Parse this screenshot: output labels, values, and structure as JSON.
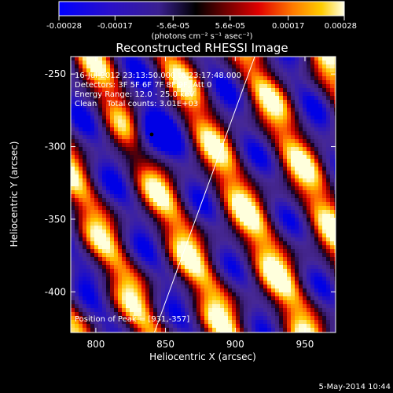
{
  "colorbar": {
    "tick_labels": [
      "-0.00028",
      "-0.00017",
      "-5.6e-05",
      "5.6e-05",
      "0.00017",
      "0.00028"
    ],
    "units": "(photons cm⁻² s⁻¹ asec⁻²)"
  },
  "title": "Reconstructed RHESSI Image",
  "info_lines": [
    "16-Jul-2012 23:13:50.000 to 23:17:48.000",
    "Detectors: 3F 5F 6F 7F 8F 9F, Att 0",
    "Energy Range: 12.0 - 25.0 keV",
    "Clean    Total counts: 3.01E+03"
  ],
  "peak_label": "Position of Peak = [931,-357]",
  "axes": {
    "xlabel": "Heliocentric X (arcsec)",
    "ylabel": "Heliocentric Y (arcsec)",
    "x_ticks": [
      "800",
      "850",
      "900",
      "950"
    ],
    "y_ticks": [
      "-250",
      "-300",
      "-350",
      "-400"
    ]
  },
  "footer_date": "5-May-2014 10:44",
  "chart_data": {
    "type": "heatmap",
    "title": "Reconstructed RHESSI Image",
    "xlabel": "Heliocentric X (arcsec)",
    "ylabel": "Heliocentric Y (arcsec)",
    "xlim": [
      782,
      972
    ],
    "ylim": [
      -428,
      -238
    ],
    "colorbar_range": [
      -0.00028,
      0.00028
    ],
    "peak_position": [
      931,
      -357
    ],
    "limb_line": {
      "x1": 842,
      "y1": -428,
      "x2": 914,
      "y2": -238
    },
    "colormap": [
      "#0000ff",
      "#3a1aa0",
      "#4a2a8a",
      "#000000",
      "#7a0000",
      "#e00000",
      "#ff7a00",
      "#ffcc00",
      "#ffffe0"
    ]
  }
}
